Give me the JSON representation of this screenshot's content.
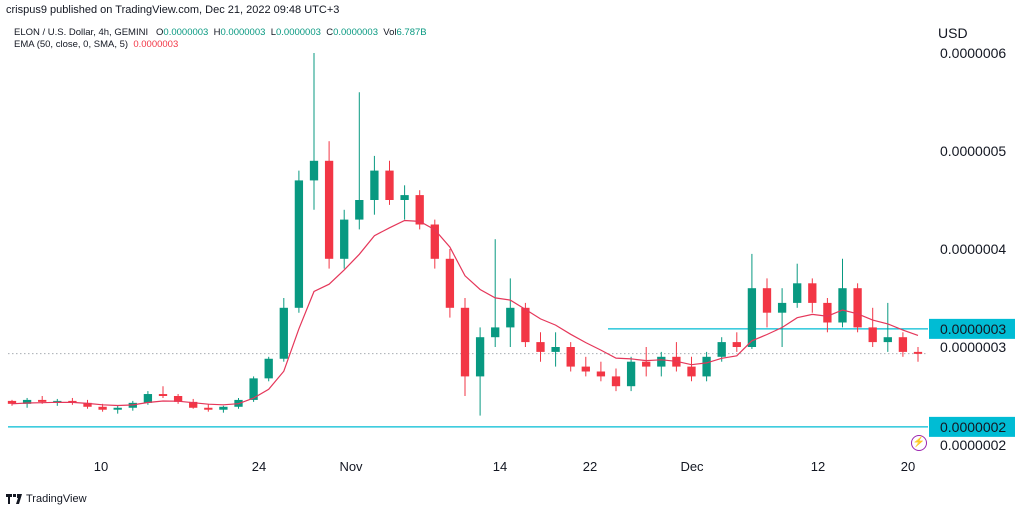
{
  "header": {
    "publisher": "crispus9 published on TradingView.com, Dec 21, 2022 09:48 UTC+3"
  },
  "legend": {
    "symbol": "ELON / U.S. Dollar, 4h, GEMINI",
    "ohlc": {
      "open_label": "O",
      "open": "0.0000003",
      "high_label": "H",
      "high": "0.0000003",
      "low_label": "L",
      "low": "0.0000003",
      "close_label": "C",
      "close": "0.0000003",
      "vol_label": "Vol",
      "vol": "6.787B"
    },
    "ema_label": "EMA (50, close, 0, SMA, 5)",
    "ema_value": "0.0000003"
  },
  "currency": "USD",
  "footer": {
    "brand": "TradingView"
  },
  "colors": {
    "up": "#089981",
    "down": "#f23645",
    "ema": "#e5375a",
    "hline": "#00bcd4",
    "badge": "#00bcd4",
    "text": "#131722"
  },
  "chart_data": {
    "type": "candlestick",
    "y_tick_labels": [
      "0.0000006",
      "0.0000005",
      "0.0000004",
      "0.0000003",
      "0.0000002"
    ],
    "y_tick_values": [
      6e-07,
      5e-07,
      4e-07,
      3e-07,
      2e-07
    ],
    "x_tick_labels": [
      "10",
      "24",
      "Nov",
      "14",
      "22",
      "Dec",
      "12",
      "20"
    ],
    "ylim": [
      1.95e-07,
      6.12e-07
    ],
    "price_badges": [
      "0.0000003",
      "0.0000002"
    ],
    "horizontal_lines": [
      {
        "price": 3.185e-07,
        "from": "Nov 23",
        "to": "end"
      },
      {
        "price": 2.185e-07,
        "from": "start",
        "to": "end"
      }
    ],
    "last_price": 2.932e-07,
    "ohlc_approx": [
      [
        2.45e-07,
        2.46e-07,
        2.4e-07,
        2.42e-07
      ],
      [
        2.42e-07,
        2.48e-07,
        2.38e-07,
        2.46e-07
      ],
      [
        2.46e-07,
        2.5e-07,
        2.42e-07,
        2.44e-07
      ],
      [
        2.44e-07,
        2.47e-07,
        2.4e-07,
        2.45e-07
      ],
      [
        2.45e-07,
        2.48e-07,
        2.41e-07,
        2.43e-07
      ],
      [
        2.43e-07,
        2.46e-07,
        2.37e-07,
        2.39e-07
      ],
      [
        2.39e-07,
        2.42e-07,
        2.34e-07,
        2.36e-07
      ],
      [
        2.36e-07,
        2.4e-07,
        2.32e-07,
        2.38e-07
      ],
      [
        2.38e-07,
        2.45e-07,
        2.35e-07,
        2.43e-07
      ],
      [
        2.43e-07,
        2.55e-07,
        2.41e-07,
        2.52e-07
      ],
      [
        2.52e-07,
        2.6e-07,
        2.48e-07,
        2.5e-07
      ],
      [
        2.5e-07,
        2.52e-07,
        2.42e-07,
        2.44e-07
      ],
      [
        2.44e-07,
        2.47e-07,
        2.37e-07,
        2.38e-07
      ],
      [
        2.38e-07,
        2.42e-07,
        2.34e-07,
        2.36e-07
      ],
      [
        2.36e-07,
        2.4e-07,
        2.33e-07,
        2.39e-07
      ],
      [
        2.39e-07,
        2.48e-07,
        2.37e-07,
        2.46e-07
      ],
      [
        2.46e-07,
        2.7e-07,
        2.44e-07,
        2.68e-07
      ],
      [
        2.68e-07,
        2.9e-07,
        2.65e-07,
        2.88e-07
      ],
      [
        2.88e-07,
        3.5e-07,
        2.85e-07,
        3.4e-07
      ],
      [
        3.4e-07,
        4.8e-07,
        3.35e-07,
        4.7e-07
      ],
      [
        4.7e-07,
        6e-07,
        4.4e-07,
        4.9e-07
      ],
      [
        4.9e-07,
        5.1e-07,
        3.8e-07,
        3.9e-07
      ],
      [
        3.9e-07,
        4.4e-07,
        3.8e-07,
        4.3e-07
      ],
      [
        4.3e-07,
        5.6e-07,
        4.2e-07,
        4.5e-07
      ],
      [
        4.5e-07,
        4.95e-07,
        4.35e-07,
        4.8e-07
      ],
      [
        4.8e-07,
        4.9e-07,
        4.45e-07,
        4.5e-07
      ],
      [
        4.5e-07,
        4.65e-07,
        4.3e-07,
        4.55e-07
      ],
      [
        4.55e-07,
        4.6e-07,
        4.2e-07,
        4.25e-07
      ],
      [
        4.25e-07,
        4.3e-07,
        3.8e-07,
        3.9e-07
      ],
      [
        3.9e-07,
        4e-07,
        3.3e-07,
        3.4e-07
      ],
      [
        3.4e-07,
        3.5e-07,
        2.5e-07,
        2.7e-07
      ],
      [
        2.7e-07,
        3.2e-07,
        2.3e-07,
        3.1e-07
      ],
      [
        3.1e-07,
        4.1e-07,
        3e-07,
        3.2e-07
      ],
      [
        3.2e-07,
        3.7e-07,
        3e-07,
        3.4e-07
      ],
      [
        3.4e-07,
        3.45e-07,
        3e-07,
        3.05e-07
      ],
      [
        3.05e-07,
        3.15e-07,
        2.85e-07,
        2.95e-07
      ],
      [
        2.95e-07,
        3.15e-07,
        2.8e-07,
        3e-07
      ],
      [
        3e-07,
        3.05e-07,
        2.75e-07,
        2.8e-07
      ],
      [
        2.8e-07,
        2.9e-07,
        2.7e-07,
        2.75e-07
      ],
      [
        2.75e-07,
        2.85e-07,
        2.65e-07,
        2.7e-07
      ],
      [
        2.7e-07,
        2.78e-07,
        2.55e-07,
        2.6e-07
      ],
      [
        2.6e-07,
        2.9e-07,
        2.55e-07,
        2.85e-07
      ],
      [
        2.85e-07,
        3e-07,
        2.7e-07,
        2.8e-07
      ],
      [
        2.8e-07,
        2.95e-07,
        2.7e-07,
        2.9e-07
      ],
      [
        2.9e-07,
        3.05e-07,
        2.75e-07,
        2.8e-07
      ],
      [
        2.8e-07,
        2.9e-07,
        2.65e-07,
        2.7e-07
      ],
      [
        2.7e-07,
        2.95e-07,
        2.65e-07,
        2.9e-07
      ],
      [
        2.9e-07,
        3.1e-07,
        2.85e-07,
        3.05e-07
      ],
      [
        3.05e-07,
        3.15e-07,
        2.95e-07,
        3e-07
      ],
      [
        3e-07,
        3.95e-07,
        2.98e-07,
        3.6e-07
      ],
      [
        3.6e-07,
        3.7e-07,
        3.2e-07,
        3.35e-07
      ],
      [
        3.35e-07,
        3.6e-07,
        3e-07,
        3.45e-07
      ],
      [
        3.45e-07,
        3.85e-07,
        3.4e-07,
        3.65e-07
      ],
      [
        3.65e-07,
        3.7e-07,
        3.35e-07,
        3.45e-07
      ],
      [
        3.45e-07,
        3.5e-07,
        3.15e-07,
        3.25e-07
      ],
      [
        3.25e-07,
        3.9e-07,
        3.2e-07,
        3.6e-07
      ],
      [
        3.6e-07,
        3.65e-07,
        3.15e-07,
        3.2e-07
      ],
      [
        3.2e-07,
        3.4e-07,
        3e-07,
        3.05e-07
      ],
      [
        3.05e-07,
        3.45e-07,
        2.95e-07,
        3.1e-07
      ],
      [
        3.1e-07,
        3.15e-07,
        2.9e-07,
        2.95e-07
      ],
      [
        2.95e-07,
        3e-07,
        2.85e-07,
        2.93e-07
      ]
    ],
    "ema": "EMA 50 overlay line"
  }
}
